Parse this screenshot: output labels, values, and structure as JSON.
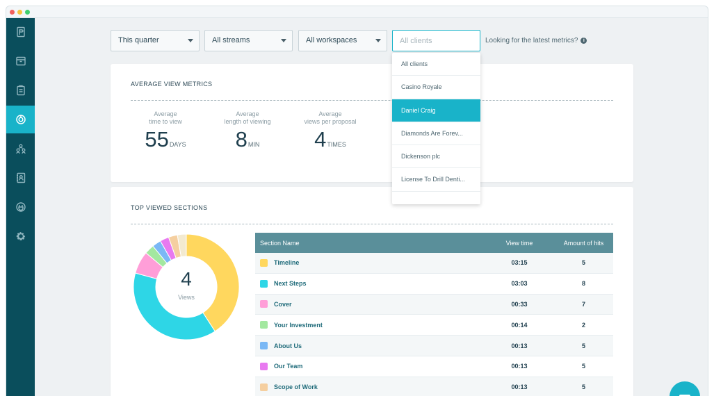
{
  "filters": {
    "period": "This quarter",
    "streams": "All streams",
    "workspaces": "All workspaces",
    "client_placeholder": "All clients"
  },
  "hint": "Looking for the latest metrics?",
  "average_metrics": {
    "title": "AVERAGE VIEW METRICS",
    "items": [
      {
        "label_line1": "Average",
        "label_line2": "time to view",
        "value": "55",
        "unit": "DAYS"
      },
      {
        "label_line1": "Average",
        "label_line2": "length of viewing",
        "value": "8",
        "unit": "MIN"
      },
      {
        "label_line1": "Average",
        "label_line2": "views per proposal",
        "value": "4",
        "unit": "TIMES"
      }
    ]
  },
  "top_sections": {
    "title": "TOP VIEWED SECTIONS",
    "donut_value": "4",
    "donut_label": "Views",
    "columns": {
      "name": "Section Name",
      "time": "View time",
      "hits": "Amount of hits"
    },
    "rows": [
      {
        "name": "Timeline",
        "time": "03:15",
        "hits": "5",
        "color": "#ffd75e",
        "seconds": 195
      },
      {
        "name": "Next Steps",
        "time": "03:03",
        "hits": "8",
        "color": "#2ed6e6",
        "seconds": 183
      },
      {
        "name": "Cover",
        "time": "00:33",
        "hits": "7",
        "color": "#ff9ed8",
        "seconds": 33
      },
      {
        "name": "Your Investment",
        "time": "00:14",
        "hits": "2",
        "color": "#a3e8a0",
        "seconds": 14
      },
      {
        "name": "About Us",
        "time": "00:13",
        "hits": "5",
        "color": "#7ab8f5",
        "seconds": 13
      },
      {
        "name": "Our Team",
        "time": "00:13",
        "hits": "5",
        "color": "#e87af0",
        "seconds": 13
      },
      {
        "name": "Scope of Work",
        "time": "00:13",
        "hits": "5",
        "color": "#f5cfa0",
        "seconds": 13
      }
    ],
    "extra_slice": {
      "color": "#f3ead0",
      "seconds": 13
    }
  },
  "client_dropdown": {
    "options": [
      "All clients",
      "Casino Royale",
      "Daniel Craig",
      "Diamonds Are Forev...",
      "Dickenson plc",
      "License To Drill Denti..."
    ],
    "selected_index": 2
  },
  "colors": {
    "accent": "#19b3c9",
    "sidebar": "#0a4e5c",
    "table_header": "#5a8f9a"
  },
  "sidebar_icons": [
    "proposal-icon",
    "archive-icon",
    "clipboard-icon",
    "metrics-icon",
    "team-icon",
    "contacts-icon",
    "integrations-icon",
    "settings-icon"
  ],
  "sidebar_active_index": 3
}
